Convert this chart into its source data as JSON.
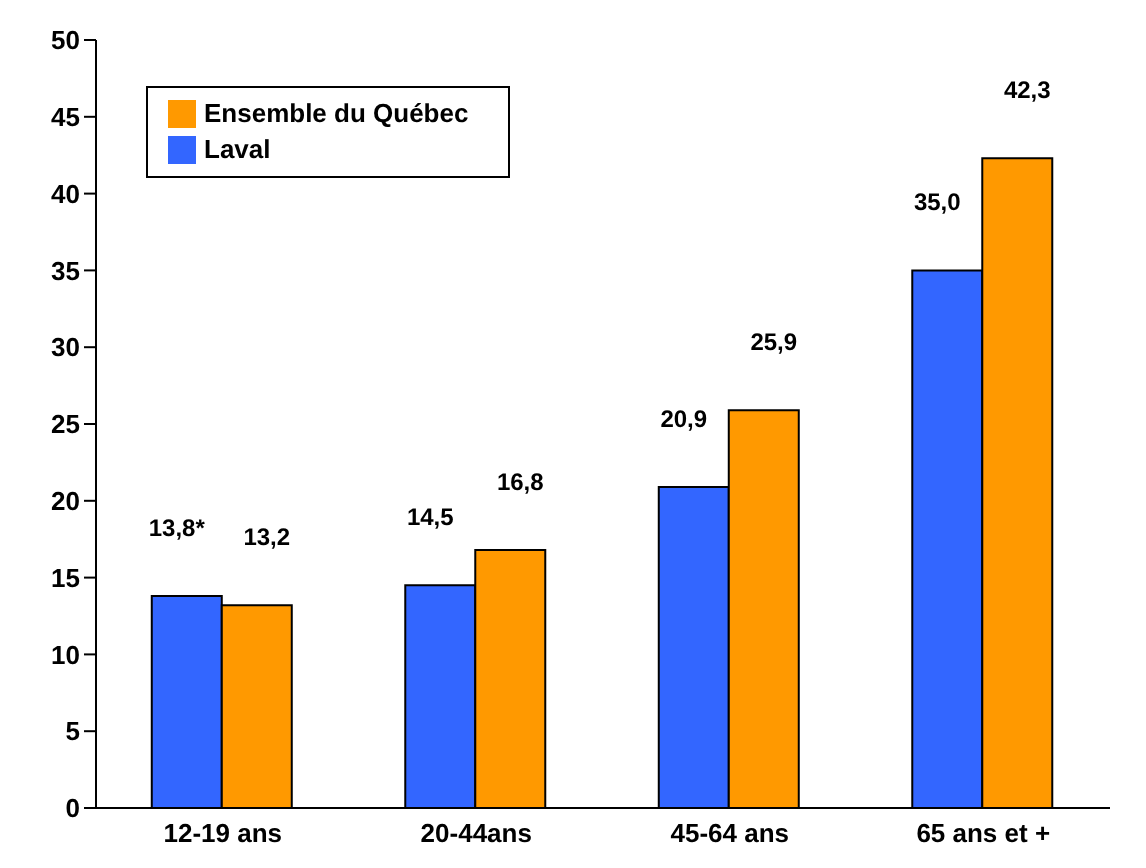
{
  "chart_data": {
    "type": "bar",
    "categories": [
      "12-19 ans",
      "20-44ans",
      "45-64 ans",
      "65 ans et +"
    ],
    "series": [
      {
        "name": "Laval",
        "color": "#3366ff",
        "values": [
          13.8,
          14.5,
          20.9,
          35.0
        ],
        "value_labels": [
          "13,8*",
          "14,5",
          "20,9",
          "35,0"
        ]
      },
      {
        "name": "Ensemble du Québec",
        "color": "#ff9900",
        "values": [
          13.2,
          16.8,
          25.9,
          42.3
        ],
        "value_labels": [
          "13,2",
          "16,8",
          "25,9",
          "42,3"
        ]
      }
    ],
    "ylim": [
      0,
      50
    ],
    "yticks": [
      0,
      5,
      10,
      15,
      20,
      25,
      30,
      35,
      40,
      45,
      50
    ],
    "grid": false,
    "legend": "top left"
  }
}
